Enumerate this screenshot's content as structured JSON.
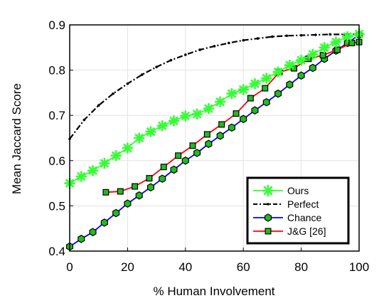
{
  "chart_data": {
    "type": "line",
    "xlabel": "% Human Involvement",
    "ylabel": "Mean Jaccard Score",
    "xlim": [
      0,
      100
    ],
    "ylim": [
      0.4,
      0.9
    ],
    "xticks": [
      "0",
      "20",
      "40",
      "60",
      "80",
      "100"
    ],
    "yticks": [
      "0.4",
      "0.5",
      "0.6",
      "0.7",
      "0.8",
      "0.9"
    ],
    "grid": true,
    "legend_position": "lower-right",
    "series": [
      {
        "name": "Ours",
        "color": "#33ff33",
        "line_style": "solid",
        "marker": "asterisk",
        "x": [
          0,
          4,
          8,
          12,
          16,
          20,
          24,
          28,
          32,
          36,
          40,
          44,
          48,
          52,
          56,
          60,
          64,
          68,
          72,
          76,
          80,
          84,
          88,
          92,
          96,
          100
        ],
        "y": [
          0.55,
          0.565,
          0.578,
          0.594,
          0.611,
          0.628,
          0.65,
          0.664,
          0.677,
          0.688,
          0.699,
          0.703,
          0.715,
          0.73,
          0.748,
          0.757,
          0.77,
          0.782,
          0.796,
          0.811,
          0.822,
          0.835,
          0.85,
          0.862,
          0.874,
          0.88
        ]
      },
      {
        "name": "Perfect",
        "color": "#000000",
        "line_style": "dashdot",
        "marker": "small-dot",
        "x": [
          0,
          5,
          10,
          15,
          20,
          25,
          30,
          35,
          40,
          45,
          50,
          55,
          60,
          65,
          70,
          75,
          80,
          85,
          90,
          95,
          100
        ],
        "y": [
          0.648,
          0.69,
          0.722,
          0.748,
          0.77,
          0.79,
          0.807,
          0.822,
          0.834,
          0.845,
          0.853,
          0.86,
          0.866,
          0.87,
          0.874,
          0.876,
          0.877,
          0.878,
          0.879,
          0.879,
          0.88
        ]
      },
      {
        "name": "Chance",
        "color": "#0000ff",
        "line_style": "solid",
        "marker": "hexagon",
        "x": [
          0,
          4,
          8,
          12,
          16,
          20,
          24,
          28,
          32,
          36,
          40,
          44,
          48,
          52,
          56,
          60,
          64,
          68,
          72,
          76,
          80,
          84,
          88,
          92,
          96,
          100
        ],
        "y": [
          0.41,
          0.427,
          0.442,
          0.463,
          0.484,
          0.505,
          0.523,
          0.541,
          0.56,
          0.58,
          0.6,
          0.617,
          0.637,
          0.655,
          0.673,
          0.692,
          0.711,
          0.729,
          0.748,
          0.768,
          0.788,
          0.805,
          0.825,
          0.843,
          0.86,
          0.878
        ]
      },
      {
        "name": "J&G [26]",
        "color": "#ff0000",
        "line_style": "solid",
        "marker": "square",
        "x": [
          12.5,
          17.5,
          22.5,
          27.5,
          32.5,
          37.5,
          42.5,
          47.5,
          52.5,
          57.5,
          62.5,
          67.5,
          72.5,
          77.5,
          82.5,
          87.5,
          92.5,
          97.5,
          100
        ],
        "y": [
          0.53,
          0.532,
          0.543,
          0.561,
          0.586,
          0.611,
          0.633,
          0.658,
          0.68,
          0.704,
          0.738,
          0.76,
          0.796,
          0.804,
          0.825,
          0.833,
          0.845,
          0.86,
          0.862
        ]
      }
    ]
  }
}
